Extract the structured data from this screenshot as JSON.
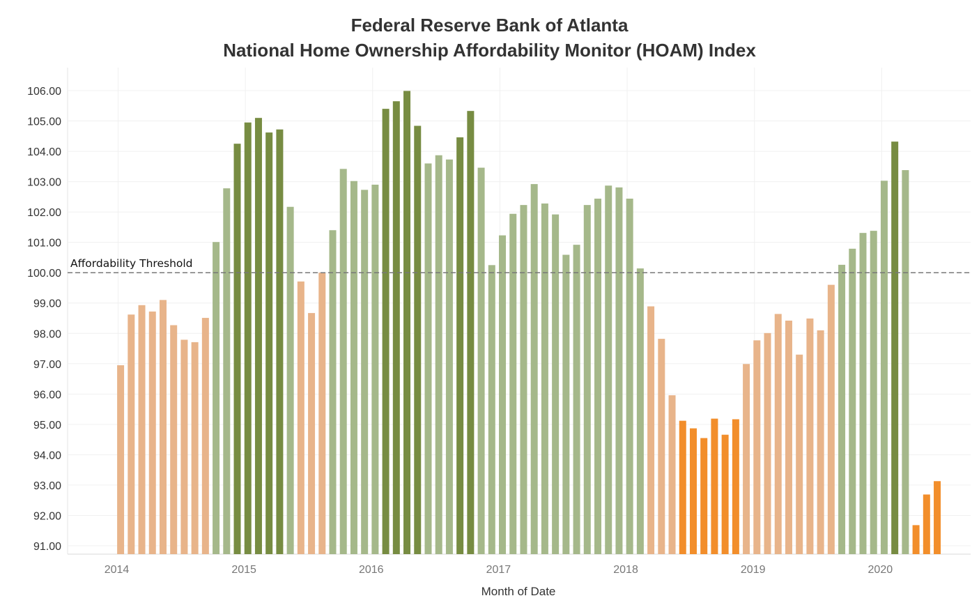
{
  "chart_data": {
    "type": "bar",
    "title_lines": [
      "Federal Reserve Bank of Atlanta",
      "National Home Ownership Affordability Monitor (HOAM) Index"
    ],
    "xlabel": "Month of Date",
    "ylabel": "",
    "ylim": [
      90.8,
      106.3
    ],
    "yticks": [
      "106.00",
      "105.00",
      "104.00",
      "103.00",
      "102.00",
      "101.00",
      "100.00",
      "99.00",
      "98.00",
      "97.00",
      "96.00",
      "95.00",
      "94.00",
      "93.00",
      "92.00",
      "91.00"
    ],
    "xtick_labels": [
      "2014",
      "2015",
      "2016",
      "2017",
      "2018",
      "2019",
      "2020"
    ],
    "x_axis_start": "2013-08",
    "grid": true,
    "reference_line": {
      "value": 100,
      "label": "Affordability Threshold",
      "style": "dashed"
    },
    "colors": {
      "below_100_light": "#e8b48a",
      "below_100_strong": "#f28e2b",
      "above_100_light": "#a5b88a",
      "above_100_strong": "#778c42"
    },
    "series": [
      {
        "month": "2014-01",
        "value": 96.95,
        "color": "#e8b48a"
      },
      {
        "month": "2014-02",
        "value": 98.62,
        "color": "#e8b48a"
      },
      {
        "month": "2014-03",
        "value": 98.93,
        "color": "#e8b48a"
      },
      {
        "month": "2014-04",
        "value": 98.72,
        "color": "#e8b48a"
      },
      {
        "month": "2014-05",
        "value": 99.1,
        "color": "#e8b48a"
      },
      {
        "month": "2014-06",
        "value": 98.27,
        "color": "#e8b48a"
      },
      {
        "month": "2014-07",
        "value": 97.79,
        "color": "#e8b48a"
      },
      {
        "month": "2014-08",
        "value": 97.71,
        "color": "#e8b48a"
      },
      {
        "month": "2014-09",
        "value": 98.51,
        "color": "#e8b48a"
      },
      {
        "month": "2014-10",
        "value": 101.01,
        "color": "#a5b88a"
      },
      {
        "month": "2014-11",
        "value": 102.78,
        "color": "#a5b88a"
      },
      {
        "month": "2014-12",
        "value": 104.25,
        "color": "#778c42"
      },
      {
        "month": "2015-01",
        "value": 104.95,
        "color": "#778c42"
      },
      {
        "month": "2015-02",
        "value": 105.1,
        "color": "#778c42"
      },
      {
        "month": "2015-03",
        "value": 104.62,
        "color": "#778c42"
      },
      {
        "month": "2015-04",
        "value": 104.72,
        "color": "#778c42"
      },
      {
        "month": "2015-05",
        "value": 102.17,
        "color": "#a5b88a"
      },
      {
        "month": "2015-06",
        "value": 99.71,
        "color": "#e8b48a"
      },
      {
        "month": "2015-07",
        "value": 98.67,
        "color": "#e8b48a"
      },
      {
        "month": "2015-08",
        "value": 100.0,
        "color": "#e8b48a"
      },
      {
        "month": "2015-09",
        "value": 101.4,
        "color": "#a5b88a"
      },
      {
        "month": "2015-10",
        "value": 103.42,
        "color": "#a5b88a"
      },
      {
        "month": "2015-11",
        "value": 103.02,
        "color": "#a5b88a"
      },
      {
        "month": "2015-12",
        "value": 102.73,
        "color": "#a5b88a"
      },
      {
        "month": "2016-01",
        "value": 102.9,
        "color": "#a5b88a"
      },
      {
        "month": "2016-02",
        "value": 105.4,
        "color": "#778c42"
      },
      {
        "month": "2016-03",
        "value": 105.65,
        "color": "#778c42"
      },
      {
        "month": "2016-04",
        "value": 105.99,
        "color": "#778c42"
      },
      {
        "month": "2016-05",
        "value": 104.84,
        "color": "#778c42"
      },
      {
        "month": "2016-06",
        "value": 103.6,
        "color": "#a5b88a"
      },
      {
        "month": "2016-07",
        "value": 103.87,
        "color": "#a5b88a"
      },
      {
        "month": "2016-08",
        "value": 103.73,
        "color": "#a5b88a"
      },
      {
        "month": "2016-09",
        "value": 104.46,
        "color": "#778c42"
      },
      {
        "month": "2016-10",
        "value": 105.33,
        "color": "#778c42"
      },
      {
        "month": "2016-11",
        "value": 103.46,
        "color": "#a5b88a"
      },
      {
        "month": "2016-12",
        "value": 100.25,
        "color": "#a5b88a"
      },
      {
        "month": "2017-01",
        "value": 101.23,
        "color": "#a5b88a"
      },
      {
        "month": "2017-02",
        "value": 101.94,
        "color": "#a5b88a"
      },
      {
        "month": "2017-03",
        "value": 102.23,
        "color": "#a5b88a"
      },
      {
        "month": "2017-04",
        "value": 102.92,
        "color": "#a5b88a"
      },
      {
        "month": "2017-05",
        "value": 102.28,
        "color": "#a5b88a"
      },
      {
        "month": "2017-06",
        "value": 101.92,
        "color": "#a5b88a"
      },
      {
        "month": "2017-07",
        "value": 100.59,
        "color": "#a5b88a"
      },
      {
        "month": "2017-08",
        "value": 100.92,
        "color": "#a5b88a"
      },
      {
        "month": "2017-09",
        "value": 102.23,
        "color": "#a5b88a"
      },
      {
        "month": "2017-10",
        "value": 102.44,
        "color": "#a5b88a"
      },
      {
        "month": "2017-11",
        "value": 102.87,
        "color": "#a5b88a"
      },
      {
        "month": "2017-12",
        "value": 102.81,
        "color": "#a5b88a"
      },
      {
        "month": "2018-01",
        "value": 102.44,
        "color": "#a5b88a"
      },
      {
        "month": "2018-02",
        "value": 100.14,
        "color": "#a5b88a"
      },
      {
        "month": "2018-03",
        "value": 98.89,
        "color": "#e8b48a"
      },
      {
        "month": "2018-04",
        "value": 97.82,
        "color": "#e8b48a"
      },
      {
        "month": "2018-05",
        "value": 95.96,
        "color": "#e8b48a"
      },
      {
        "month": "2018-06",
        "value": 95.12,
        "color": "#f28e2b"
      },
      {
        "month": "2018-07",
        "value": 94.87,
        "color": "#f28e2b"
      },
      {
        "month": "2018-08",
        "value": 94.55,
        "color": "#f28e2b"
      },
      {
        "month": "2018-09",
        "value": 95.19,
        "color": "#f28e2b"
      },
      {
        "month": "2018-10",
        "value": 94.66,
        "color": "#f28e2b"
      },
      {
        "month": "2018-11",
        "value": 95.17,
        "color": "#f28e2b"
      },
      {
        "month": "2018-12",
        "value": 96.99,
        "color": "#e8b48a"
      },
      {
        "month": "2019-01",
        "value": 97.77,
        "color": "#e8b48a"
      },
      {
        "month": "2019-02",
        "value": 98.01,
        "color": "#e8b48a"
      },
      {
        "month": "2019-03",
        "value": 98.64,
        "color": "#e8b48a"
      },
      {
        "month": "2019-04",
        "value": 98.42,
        "color": "#e8b48a"
      },
      {
        "month": "2019-05",
        "value": 97.3,
        "color": "#e8b48a"
      },
      {
        "month": "2019-06",
        "value": 98.49,
        "color": "#e8b48a"
      },
      {
        "month": "2019-07",
        "value": 98.1,
        "color": "#e8b48a"
      },
      {
        "month": "2019-08",
        "value": 99.6,
        "color": "#e8b48a"
      },
      {
        "month": "2019-09",
        "value": 100.26,
        "color": "#a5b88a"
      },
      {
        "month": "2019-10",
        "value": 100.79,
        "color": "#a5b88a"
      },
      {
        "month": "2019-11",
        "value": 101.31,
        "color": "#a5b88a"
      },
      {
        "month": "2019-12",
        "value": 101.38,
        "color": "#a5b88a"
      },
      {
        "month": "2020-01",
        "value": 103.03,
        "color": "#a5b88a"
      },
      {
        "month": "2020-02",
        "value": 104.32,
        "color": "#778c42"
      },
      {
        "month": "2020-03",
        "value": 103.38,
        "color": "#a5b88a"
      },
      {
        "month": "2020-04",
        "value": 91.68,
        "color": "#f28e2b"
      },
      {
        "month": "2020-05",
        "value": 92.69,
        "color": "#f28e2b"
      },
      {
        "month": "2020-06",
        "value": 93.13,
        "color": "#f28e2b"
      }
    ]
  }
}
